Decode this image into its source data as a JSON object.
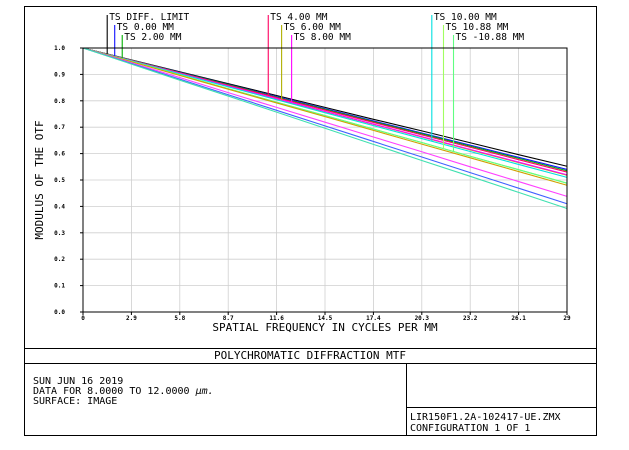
{
  "chart_data": {
    "type": "line",
    "title": "POLYCHROMATIC DIFFRACTION MTF",
    "xlabel": "SPATIAL FREQUENCY IN CYCLES PER MM",
    "ylabel": "MODULUS OF THE OTF",
    "xlim": [
      0,
      29
    ],
    "ylim": [
      0,
      1
    ],
    "x_ticks": [
      "0",
      "2.9",
      "5.8",
      "8.7",
      "11.6",
      "14.5",
      "17.4",
      "20.3",
      "23.2",
      "26.1",
      "29"
    ],
    "y_ticks": [
      "0.0",
      "0.1",
      "0.2",
      "0.3",
      "0.4",
      "0.5",
      "0.6",
      "0.7",
      "0.8",
      "0.9",
      "1.0"
    ],
    "grid": true,
    "legend_placement": "top, above plot",
    "x": [
      0,
      2.9,
      5.8,
      8.7,
      11.6,
      14.5,
      17.4,
      20.3,
      23.2,
      26.1,
      29
    ],
    "series": [
      {
        "name": "TS DIFF. LIMIT",
        "color": "#000000",
        "marker_x": 1.45,
        "values": [
          1.0,
          0.955,
          0.91,
          0.865,
          0.82,
          0.775,
          0.73,
          0.686,
          0.641,
          0.596,
          0.552
        ]
      },
      {
        "name": "TS 0.00 MM",
        "color": "#1010ff",
        "marker_x": 1.9,
        "values": [
          1.0,
          0.954,
          0.908,
          0.862,
          0.816,
          0.77,
          0.724,
          0.678,
          0.632,
          0.586,
          0.54
        ]
      },
      {
        "name": "TS 2.00 MM",
        "color": "#00b000",
        "marker_x": 2.35,
        "values": [
          1.0,
          0.954,
          0.907,
          0.861,
          0.814,
          0.768,
          0.721,
          0.675,
          0.628,
          0.582,
          0.535
        ]
      },
      {
        "name": "TS 4.00 MM",
        "color": "#ff0060",
        "marker_x": 11.1,
        "values": [
          1.0,
          0.953,
          0.906,
          0.859,
          0.812,
          0.765,
          0.718,
          0.671,
          0.624,
          0.577,
          0.53
        ]
      },
      {
        "name": "TS 6.00 MM",
        "color": "#b0b000",
        "marker_x": 11.9,
        "values": [
          1.0,
          0.952,
          0.904,
          0.855,
          0.807,
          0.759,
          0.711,
          0.663,
          0.614,
          0.566,
          0.518
        ]
      },
      {
        "name": "TS 8.00 MM",
        "color": "#ff00ff",
        "marker_x": 12.5,
        "values": [
          1.0,
          0.952,
          0.904,
          0.856,
          0.808,
          0.76,
          0.712,
          0.664,
          0.616,
          0.568,
          0.52
        ]
      },
      {
        "name": "TS 10.00 MM",
        "color": "#00e0e0",
        "marker_x": 20.9,
        "values": [
          1.0,
          0.951,
          0.902,
          0.853,
          0.804,
          0.755,
          0.706,
          0.657,
          0.608,
          0.559,
          0.51
        ]
      },
      {
        "name": "TS 10.88 MM",
        "color": "#a0ff60",
        "marker_x": 21.6,
        "values": [
          1.0,
          0.949,
          0.898,
          0.846,
          0.795,
          0.744,
          0.693,
          0.642,
          0.59,
          0.539,
          0.488
        ]
      },
      {
        "name": "TS -10.88 MM",
        "color": "#60ff80",
        "marker_x": 22.2,
        "values": [
          1.0,
          0.949,
          0.898,
          0.846,
          0.795,
          0.744,
          0.693,
          0.642,
          0.59,
          0.539,
          0.488
        ]
      },
      {
        "name": "",
        "color": "#d0a000",
        "values": [
          1.0,
          0.948,
          0.896,
          0.844,
          0.792,
          0.74,
          0.688,
          0.636,
          0.584,
          0.532,
          0.48
        ]
      },
      {
        "name": "",
        "color": "#ff40ff",
        "values": [
          1.0,
          0.944,
          0.888,
          0.831,
          0.775,
          0.719,
          0.663,
          0.607,
          0.55,
          0.494,
          0.438
        ]
      },
      {
        "name": "",
        "color": "#4060ff",
        "values": [
          1.0,
          0.941,
          0.882,
          0.823,
          0.764,
          0.705,
          0.646,
          0.587,
          0.528,
          0.469,
          0.41
        ]
      },
      {
        "name": "",
        "color": "#40e0b0",
        "values": [
          1.0,
          0.939,
          0.878,
          0.818,
          0.757,
          0.696,
          0.635,
          0.574,
          0.514,
          0.453,
          0.392
        ]
      }
    ]
  },
  "info": {
    "date": "SUN JUN 16 2019",
    "data_range_prefix": "DATA FOR 8.0000 TO 12.0000 ",
    "data_range_unit": "µm.",
    "surface": "SURFACE: IMAGE",
    "file_name": "LIR150F1.2A-102417-UE.ZMX",
    "configuration": "CONFIGURATION  1 OF  1"
  }
}
